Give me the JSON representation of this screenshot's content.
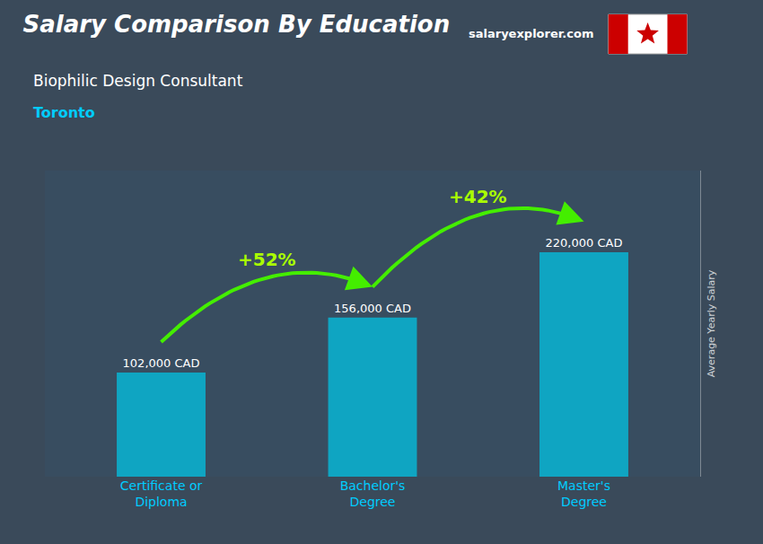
{
  "chart_data": {
    "type": "bar",
    "title": "Salary Comparison By Education",
    "subtitle": [
      "Biophilic Design Consultant",
      "Toronto"
    ],
    "ylabel": "Average Yearly Salary",
    "categories": [
      "Certificate or\nDiploma",
      "Bachelor's\nDegree",
      "Master's\nDegree"
    ],
    "values": [
      102000,
      156000,
      220000
    ],
    "value_labels": [
      "102,000 CAD",
      "156,000 CAD",
      "220,000 CAD"
    ],
    "data_labels": true,
    "color": "#00c8e8",
    "ylim": [
      0,
      300000
    ],
    "tick_labels": "x",
    "grid": false,
    "annotations": [
      {
        "text": "salaryexplorer.com"
      },
      {
        "text": "+52%",
        "between": [
          "Certificate or\nDiploma",
          "Bachelor's\nDegree"
        ]
      },
      {
        "text": "+42%",
        "between": [
          "Bachelor's\nDegree",
          "Master's\nDegree"
        ]
      }
    ]
  }
}
